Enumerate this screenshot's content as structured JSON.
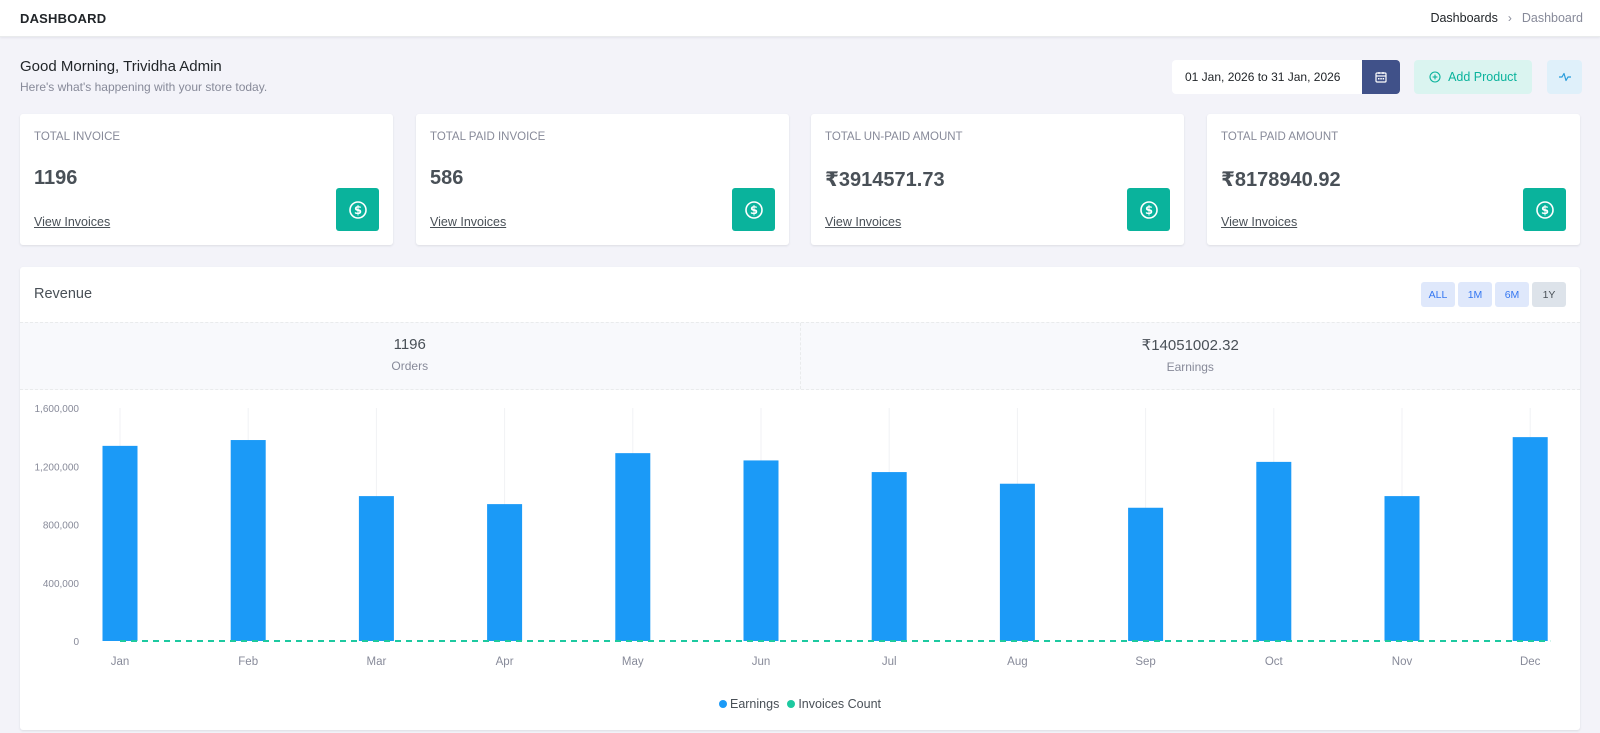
{
  "header": {
    "title": "DASHBOARD",
    "breadcrumb": {
      "parent": "Dashboards",
      "separator": "›",
      "current": "Dashboard"
    }
  },
  "greeting": {
    "title": "Good Morning, Trividha Admin",
    "subtitle": "Here's what's happening with your store today."
  },
  "toolbar": {
    "date_range": "01 Jan, 2026 to 31 Jan, 2026",
    "add_product_label": "Add Product",
    "calendar_icon": "calendar-icon",
    "add_icon": "plus-circle-icon",
    "activity_icon": "pulse-icon"
  },
  "cards": [
    {
      "label": "TOTAL INVOICE",
      "value": "1196",
      "link": "View Invoices",
      "icon": "dollar-icon"
    },
    {
      "label": "TOTAL PAID INVOICE",
      "value": "586",
      "link": "View Invoices",
      "icon": "dollar-icon"
    },
    {
      "label": "TOTAL UN-PAID AMOUNT",
      "value": "₹3914571.73",
      "link": "View Invoices",
      "icon": "dollar-icon"
    },
    {
      "label": "TOTAL PAID AMOUNT",
      "value": "₹8178940.92",
      "link": "View Invoices",
      "icon": "dollar-icon"
    }
  ],
  "revenue": {
    "title": "Revenue",
    "filters": [
      {
        "label": "ALL",
        "active": false
      },
      {
        "label": "1M",
        "active": false
      },
      {
        "label": "6M",
        "active": false
      },
      {
        "label": "1Y",
        "active": true
      }
    ],
    "stats": [
      {
        "value": "1196",
        "label": "Orders"
      },
      {
        "value": "₹14051002.32",
        "label": "Earnings"
      }
    ]
  },
  "colors": {
    "accent": "#0ab39c",
    "primary": "#405189",
    "earnings_bar": "#1b9af7",
    "invoices_line": "#1dc9a0"
  },
  "chart_data": {
    "type": "bar",
    "categories": [
      "Jan",
      "Feb",
      "Mar",
      "Apr",
      "May",
      "Jun",
      "Jul",
      "Aug",
      "Sep",
      "Oct",
      "Nov",
      "Dec"
    ],
    "series": [
      {
        "name": "Earnings",
        "type": "bar",
        "values": [
          1340000,
          1380000,
          995000,
          940000,
          1290000,
          1240000,
          1160000,
          1080000,
          915000,
          1230000,
          995000,
          1400000
        ]
      },
      {
        "name": "Invoices Count",
        "type": "line",
        "values": [
          100,
          100,
          100,
          100,
          100,
          100,
          100,
          100,
          100,
          100,
          100,
          100
        ]
      }
    ],
    "yticks": [
      "0",
      "400,000",
      "800,000",
      "1,200,000",
      "1,600,000"
    ],
    "ylim": [
      0,
      1600000
    ],
    "legend_position": "bottom",
    "grid": "vertical"
  }
}
